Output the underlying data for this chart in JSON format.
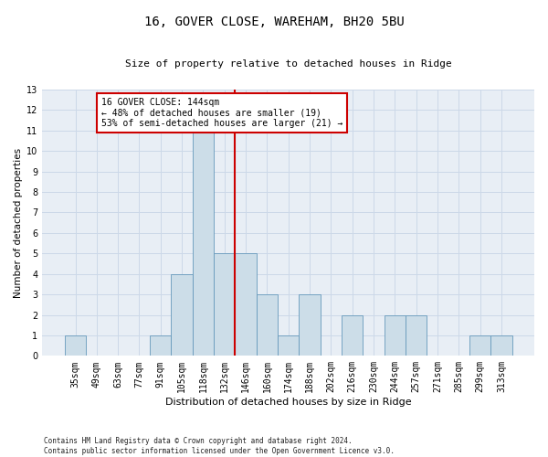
{
  "title": "16, GOVER CLOSE, WAREHAM, BH20 5BU",
  "subtitle": "Size of property relative to detached houses in Ridge",
  "xlabel": "Distribution of detached houses by size in Ridge",
  "ylabel": "Number of detached properties",
  "categories": [
    "35sqm",
    "49sqm",
    "63sqm",
    "77sqm",
    "91sqm",
    "105sqm",
    "118sqm",
    "132sqm",
    "146sqm",
    "160sqm",
    "174sqm",
    "188sqm",
    "202sqm",
    "216sqm",
    "230sqm",
    "244sqm",
    "257sqm",
    "271sqm",
    "285sqm",
    "299sqm",
    "313sqm"
  ],
  "values": [
    1,
    0,
    0,
    0,
    1,
    4,
    11,
    5,
    5,
    3,
    1,
    3,
    0,
    2,
    0,
    2,
    2,
    0,
    0,
    1,
    1
  ],
  "bar_color": "#ccdde8",
  "bar_edgecolor": "#6699bb",
  "vline_index": 8,
  "vline_color": "#cc0000",
  "annotation_text": "16 GOVER CLOSE: 144sqm\n← 48% of detached houses are smaller (19)\n53% of semi-detached houses are larger (21) →",
  "annotation_box_color": "#cc0000",
  "ylim": [
    0,
    13
  ],
  "yticks": [
    0,
    1,
    2,
    3,
    4,
    5,
    6,
    7,
    8,
    9,
    10,
    11,
    12,
    13
  ],
  "grid_color": "#ccd8e8",
  "background_color": "#e8eef5",
  "title_fontsize": 10,
  "subtitle_fontsize": 8,
  "xlabel_fontsize": 8,
  "ylabel_fontsize": 7.5,
  "tick_fontsize": 7,
  "annot_fontsize": 7,
  "footer": "Contains HM Land Registry data © Crown copyright and database right 2024.\nContains public sector information licensed under the Open Government Licence v3.0."
}
